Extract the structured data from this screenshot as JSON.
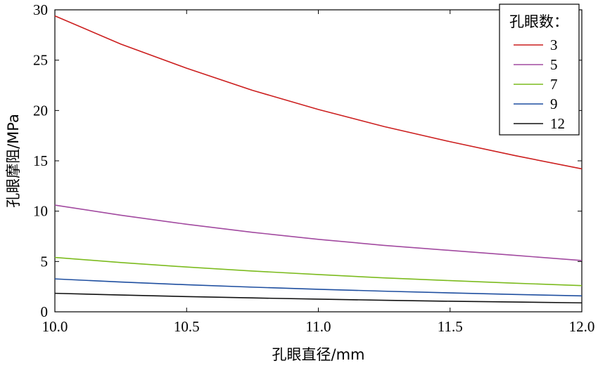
{
  "chart_data": {
    "type": "line",
    "xlabel": "孔眼直径/mm",
    "ylabel": "孔眼摩阻/MPa",
    "xlim": [
      10.0,
      12.0
    ],
    "ylim": [
      0,
      30
    ],
    "xticks": [
      "10.0",
      "10.5",
      "11.0",
      "11.5",
      "12.0"
    ],
    "yticks": [
      "0",
      "5",
      "10",
      "15",
      "20",
      "25",
      "30"
    ],
    "grid": false,
    "legend": {
      "title": "孔眼数：",
      "placement": "top-right"
    },
    "x": [
      10.0,
      10.25,
      10.5,
      10.75,
      11.0,
      11.25,
      11.5,
      11.75,
      12.0
    ],
    "series": [
      {
        "name": "3",
        "color": "#cc1f1f",
        "values": [
          29.4,
          26.6,
          24.2,
          22.0,
          20.1,
          18.4,
          16.9,
          15.5,
          14.2
        ]
      },
      {
        "name": "5",
        "color": "#a24aa0",
        "values": [
          10.6,
          9.6,
          8.7,
          7.9,
          7.2,
          6.6,
          6.1,
          5.6,
          5.1
        ]
      },
      {
        "name": "7",
        "color": "#7cbb1e",
        "values": [
          5.4,
          4.9,
          4.45,
          4.05,
          3.7,
          3.37,
          3.1,
          2.84,
          2.6
        ]
      },
      {
        "name": "9",
        "color": "#1f4fa0",
        "values": [
          3.27,
          2.96,
          2.69,
          2.45,
          2.24,
          2.05,
          1.88,
          1.72,
          1.58
        ]
      },
      {
        "name": "12",
        "color": "#111111",
        "values": [
          1.84,
          1.67,
          1.51,
          1.38,
          1.26,
          1.15,
          1.05,
          0.97,
          0.89
        ]
      }
    ]
  }
}
